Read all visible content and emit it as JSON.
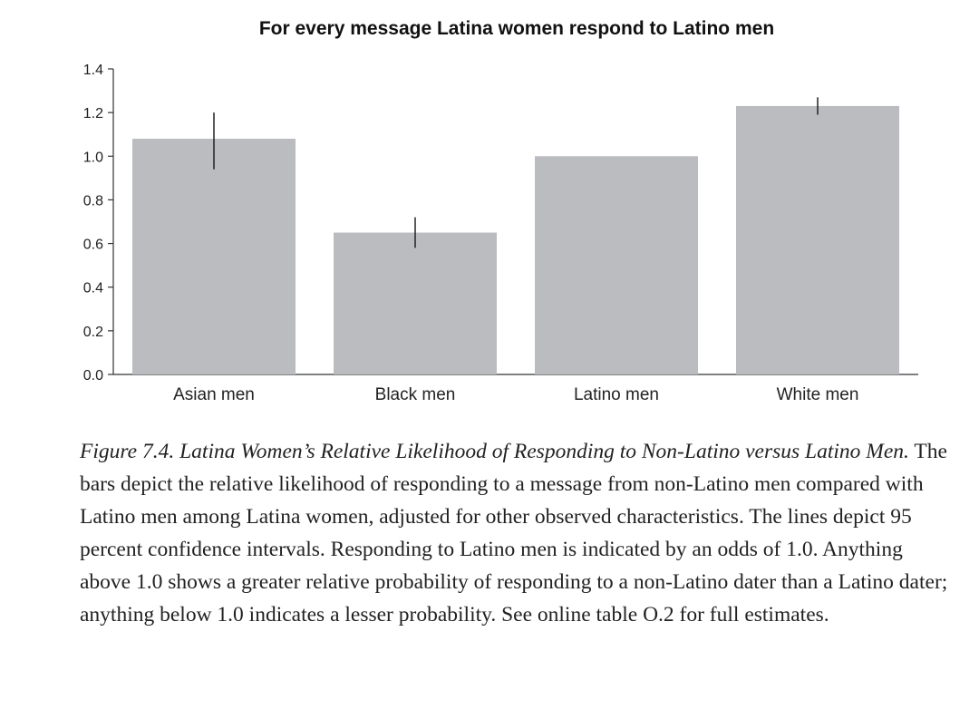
{
  "chart_data": {
    "type": "bar",
    "title": "For every message Latina women respond to Latino men",
    "categories": [
      "Asian men",
      "Black men",
      "Latino men",
      "White men"
    ],
    "values": [
      1.08,
      0.65,
      1.0,
      1.23
    ],
    "error_bars": [
      [
        0.94,
        1.2
      ],
      [
        0.58,
        0.72
      ],
      null,
      [
        1.19,
        1.27
      ]
    ],
    "ylim": [
      0,
      1.4
    ],
    "yticks": [
      "0.0",
      "0.2",
      "0.4",
      "0.6",
      "0.8",
      "1.0",
      "1.2",
      "1.4"
    ],
    "xlabel": "",
    "ylabel": "",
    "grid": false,
    "colors": {
      "bar": "#bbbcc0",
      "error_bar": "#222222",
      "axis": "#333333"
    }
  },
  "caption": {
    "figure_label": "Figure 7.4.",
    "figure_title": "Latina Women’s Relative Likelihood of Responding to Non-Latino versus Latino Men.",
    "body": "The bars depict the relative likelihood of responding to a message from non-Latino men compared with Latino men among Latina women, adjusted for other observed characteristics. The lines depict 95 percent confidence intervals. Responding to Latino men is indicated by an odds of 1.0. Anything above 1.0 shows a greater relative probability of responding to a non-Latino dater than a Latino dater; anything below 1.0 indicates a lesser probability. See online table O.2 for full estimates."
  }
}
